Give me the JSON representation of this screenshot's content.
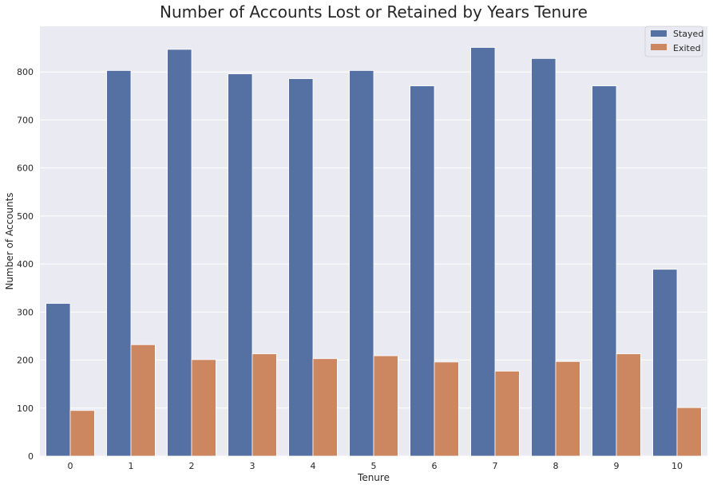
{
  "chart_data": {
    "type": "bar",
    "title": "Number of Accounts Lost or Retained by Years Tenure",
    "xlabel": "Tenure",
    "ylabel": "Number of Accounts",
    "categories": [
      "0",
      "1",
      "2",
      "3",
      "4",
      "5",
      "6",
      "7",
      "8",
      "9",
      "10"
    ],
    "series": [
      {
        "name": "Stayed",
        "color": "#5571a4",
        "values": [
          318,
          803,
          847,
          796,
          786,
          803,
          771,
          851,
          828,
          771,
          389
        ]
      },
      {
        "name": "Exited",
        "color": "#cc8660",
        "values": [
          95,
          232,
          201,
          213,
          203,
          209,
          196,
          177,
          197,
          213,
          101
        ]
      }
    ],
    "ylim": [
      0,
      895
    ],
    "yticks": [
      0,
      100,
      200,
      300,
      400,
      500,
      600,
      700,
      800
    ],
    "grid": true,
    "legend_position": "top-right",
    "background_color": "#eaeaf2",
    "grid_color": "#ffffff"
  }
}
